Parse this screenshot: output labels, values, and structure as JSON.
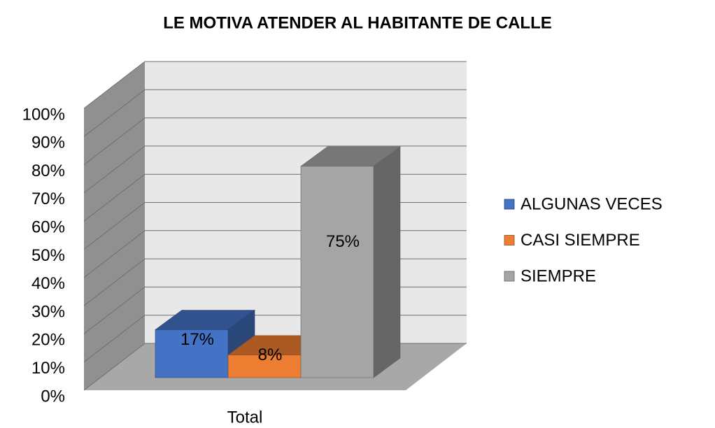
{
  "chart_data": {
    "type": "bar3d",
    "title": "LE MOTIVA ATENDER AL HABITANTE DE CALLE",
    "categories": [
      "Total"
    ],
    "series": [
      {
        "name": "ALGUNAS VECES",
        "color": "#4472c4",
        "values": [
          17
        ],
        "value_labels": [
          "17%"
        ]
      },
      {
        "name": "CASI SIEMPRE",
        "color": "#ed7d31",
        "values": [
          8
        ],
        "value_labels": [
          "8%"
        ]
      },
      {
        "name": "SIEMPRE",
        "color": "#a5a5a5",
        "values": [
          75
        ],
        "value_labels": [
          "75%"
        ]
      }
    ],
    "ylim": [
      0,
      100
    ],
    "yticks": [
      {
        "value": 0,
        "label": "0%"
      },
      {
        "value": 10,
        "label": "10%"
      },
      {
        "value": 20,
        "label": "20%"
      },
      {
        "value": 30,
        "label": "30%"
      },
      {
        "value": 40,
        "label": "40%"
      },
      {
        "value": 50,
        "label": "50%"
      },
      {
        "value": 60,
        "label": "60%"
      },
      {
        "value": 70,
        "label": "70%"
      },
      {
        "value": 80,
        "label": "80%"
      },
      {
        "value": 90,
        "label": "90%"
      },
      {
        "value": 100,
        "label": "100%"
      }
    ],
    "grid": true,
    "legend": "right"
  }
}
